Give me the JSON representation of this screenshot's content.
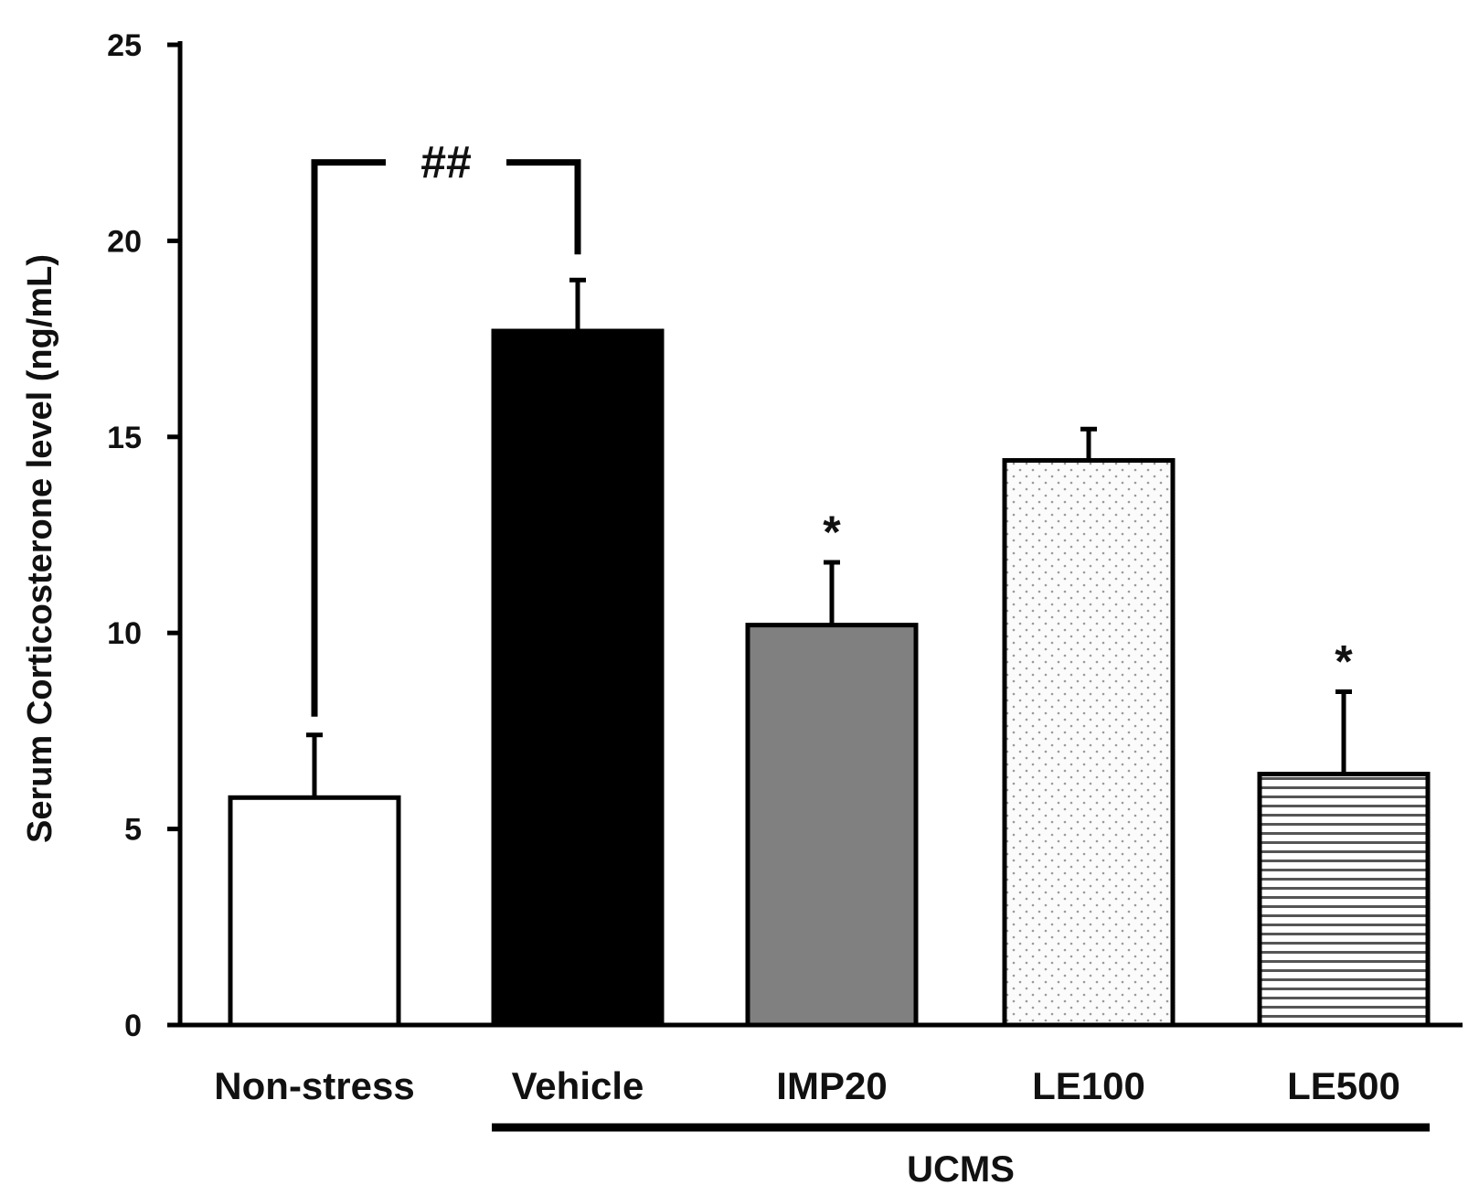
{
  "chart_data": {
    "type": "bar",
    "title": "",
    "xlabel": "",
    "ylabel": "Serum Corticosterone level (ng/mL)",
    "ylim": [
      0,
      25
    ],
    "yticks": [
      0,
      5,
      10,
      15,
      20,
      25
    ],
    "grid": false,
    "categories": [
      "Non-stress",
      "Vehicle",
      "IMP20",
      "LE100",
      "LE500"
    ],
    "values": [
      5.8,
      17.7,
      10.2,
      14.4,
      6.4
    ],
    "errors": [
      1.6,
      1.3,
      1.6,
      0.8,
      2.1
    ],
    "fills": [
      "white",
      "black",
      "gray",
      "dots",
      "hlines"
    ],
    "group": {
      "label": "UCMS",
      "categories": [
        "Vehicle",
        "IMP20",
        "LE100",
        "LE500"
      ]
    },
    "annotations": [
      {
        "type": "bracket",
        "from": "Non-stress",
        "to": "Vehicle",
        "label": "##",
        "y": 22
      },
      {
        "type": "star",
        "category": "IMP20",
        "label": "*"
      },
      {
        "type": "star",
        "category": "LE500",
        "label": "*"
      }
    ]
  },
  "colors": {
    "axis": "#000000",
    "black_bar": "#000000",
    "gray_bar": "#808080",
    "white_bar": "#ffffff"
  }
}
